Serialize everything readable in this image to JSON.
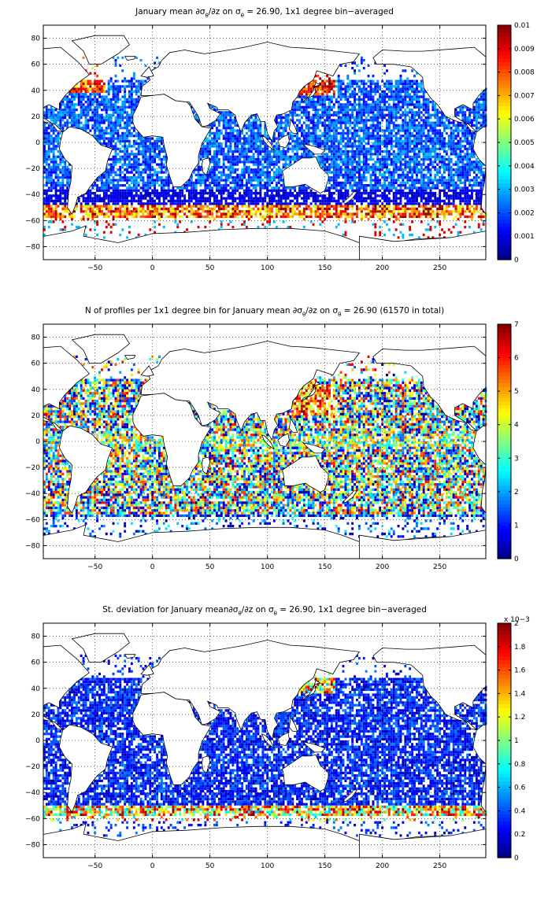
{
  "panels": [
    {
      "title_parts": [
        "January mean ∂σ",
        "θ",
        "/∂z on σ",
        "θ",
        " = 26.90, 1x1 degree bin−averaged"
      ],
      "cbar_ticks": [
        "0",
        "0.001",
        "0.002",
        "0.003",
        "0.004",
        "0.005",
        "0.006",
        "0.007",
        "0.008",
        "0.009",
        "0.01"
      ],
      "cbar_exponent": ""
    },
    {
      "title_parts": [
        "N of profiles per 1x1 degree bin for January mean ∂σ",
        "θ",
        "/∂z on σ",
        "θ",
        " = 26.90 (61570 in total)"
      ],
      "cbar_ticks": [
        "0",
        "1",
        "2",
        "3",
        "4",
        "5",
        "6",
        "7"
      ],
      "cbar_exponent": ""
    },
    {
      "title_parts": [
        "St. deviation for January mean∂σ",
        "θ",
        "/∂z on σ",
        "θ",
        " = 26.90, 1x1 degree bin−averaged"
      ],
      "cbar_ticks": [
        "0",
        "0.2",
        "0.4",
        "0.6",
        "0.8",
        "1",
        "1.2",
        "1.4",
        "1.6",
        "1.8",
        "2"
      ],
      "cbar_exponent": "x 10−3"
    }
  ],
  "chart_data": [
    {
      "type": "heatmap",
      "title": "January mean ∂σθ/∂z on σθ = 26.90, 1x1 degree bin−averaged",
      "xlim": [
        -95,
        290
      ],
      "ylim": [
        -90,
        90
      ],
      "x_ticks": [
        -50,
        0,
        50,
        100,
        150,
        200,
        250
      ],
      "y_ticks": [
        80,
        60,
        40,
        20,
        0,
        -20,
        -40,
        -60,
        -80
      ],
      "clim": [
        0,
        0.01
      ],
      "colormap": "jet",
      "grid": true
    },
    {
      "type": "heatmap",
      "title": "N of profiles per 1x1 degree bin for January mean ∂σθ/∂z on σθ = 26.90 (61570 in total)",
      "xlim": [
        -95,
        290
      ],
      "ylim": [
        -90,
        90
      ],
      "x_ticks": [
        -50,
        0,
        50,
        100,
        150,
        200,
        250
      ],
      "y_ticks": [
        80,
        60,
        40,
        20,
        0,
        -20,
        -40,
        -60,
        -80
      ],
      "clim": [
        0,
        7
      ],
      "colormap": "jet",
      "grid": true
    },
    {
      "type": "heatmap",
      "title": "St. deviation for January mean∂σθ/∂z on σθ = 26.90, 1x1 degree bin−averaged",
      "xlim": [
        -95,
        290
      ],
      "ylim": [
        -90,
        90
      ],
      "x_ticks": [
        -50,
        0,
        50,
        100,
        150,
        200,
        250
      ],
      "y_ticks": [
        80,
        60,
        40,
        20,
        0,
        -20,
        -40,
        -60,
        -80
      ],
      "clim": [
        0,
        0.002
      ],
      "colormap": "jet",
      "grid": true
    }
  ],
  "colors": {
    "axis": "#000000",
    "land": "#ffffff"
  }
}
